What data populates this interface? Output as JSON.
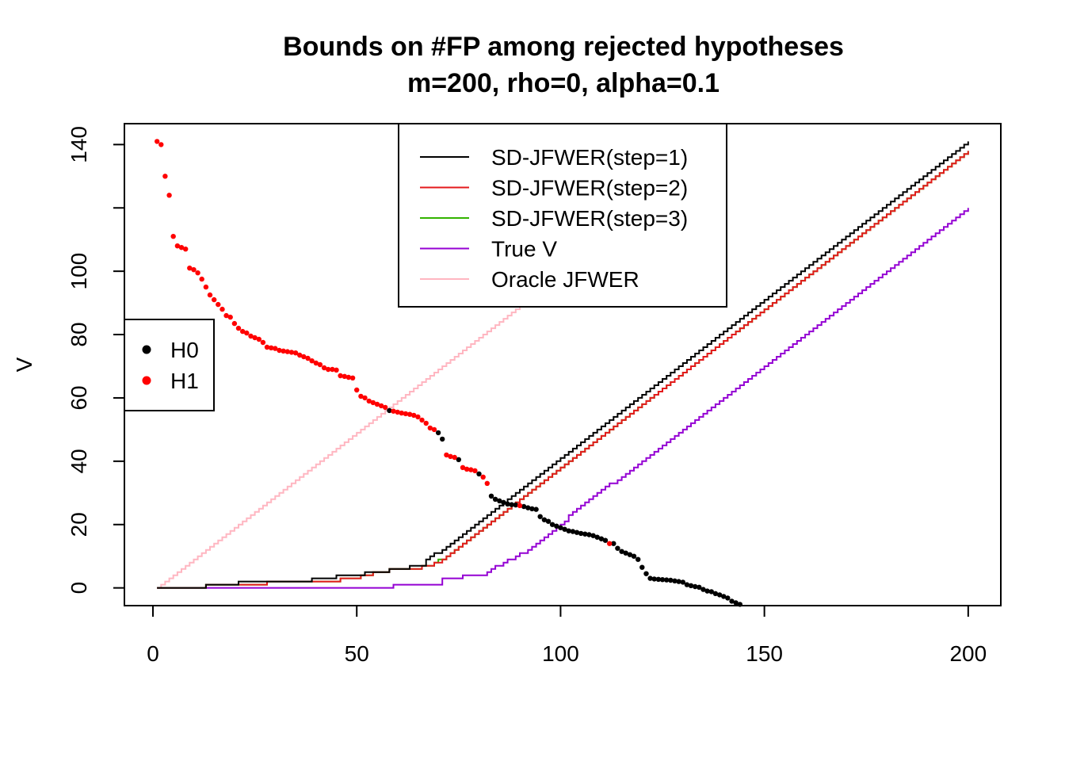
{
  "chart_data": {
    "type": "line",
    "title": "Bounds on #FP among rejected hypotheses",
    "subtitle": "m=200, rho=0, alpha=0.1",
    "xlabel": "",
    "ylabel": "V",
    "xlim": [
      -7,
      208
    ],
    "ylim": [
      -5.6,
      146.6
    ],
    "x_ticks": [
      "0",
      "50",
      "100",
      "150",
      "200"
    ],
    "y_ticks": [
      "0",
      "20",
      "40",
      "60",
      "80",
      "100",
      "140"
    ],
    "legend_lines_position": "top-center",
    "legend_points_position": "left",
    "series": [
      {
        "name": "SD-JFWER(step=1)",
        "color": "#000000",
        "style": "step",
        "points": [
          [
            1,
            0
          ],
          [
            12,
            0
          ],
          [
            13,
            1
          ],
          [
            20,
            1
          ],
          [
            21,
            2
          ],
          [
            27,
            2
          ],
          [
            28,
            2
          ],
          [
            38,
            2
          ],
          [
            39,
            3
          ],
          [
            44,
            3
          ],
          [
            45,
            4
          ],
          [
            51,
            4
          ],
          [
            52,
            5
          ],
          [
            57,
            5
          ],
          [
            58,
            6
          ],
          [
            62,
            6
          ],
          [
            63,
            7
          ],
          [
            66,
            7
          ],
          [
            67,
            9
          ],
          [
            68,
            10
          ],
          [
            70,
            11
          ],
          [
            200,
            141
          ]
        ]
      },
      {
        "name": "SD-JFWER(step=2)",
        "color": "#e41a1c",
        "style": "step",
        "points": [
          [
            1,
            0
          ],
          [
            12,
            0
          ],
          [
            13,
            1
          ],
          [
            27,
            1
          ],
          [
            28,
            2
          ],
          [
            45,
            2
          ],
          [
            46,
            3
          ],
          [
            50,
            3
          ],
          [
            51,
            4
          ],
          [
            53,
            4
          ],
          [
            54,
            5
          ],
          [
            57,
            5
          ],
          [
            58,
            6
          ],
          [
            65,
            6
          ],
          [
            66,
            7
          ],
          [
            68,
            7
          ],
          [
            69,
            8
          ],
          [
            71,
            9
          ],
          [
            200,
            138
          ]
        ]
      },
      {
        "name": "SD-JFWER(step=3)",
        "color": "#33b300",
        "style": "step",
        "points": [
          [
            1,
            0
          ],
          [
            12,
            0
          ],
          [
            13,
            1
          ],
          [
            27,
            1
          ],
          [
            28,
            2
          ],
          [
            45,
            2
          ],
          [
            46,
            3
          ],
          [
            50,
            3
          ],
          [
            51,
            4
          ],
          [
            53,
            4
          ],
          [
            54,
            5
          ],
          [
            57,
            5
          ],
          [
            58,
            6
          ],
          [
            65,
            6
          ],
          [
            66,
            7
          ],
          [
            68,
            7
          ],
          [
            69,
            8
          ],
          [
            71,
            9
          ],
          [
            200,
            138
          ]
        ]
      },
      {
        "name": "True V",
        "color": "#9400d3",
        "style": "step",
        "points": [
          [
            1,
            0
          ],
          [
            58,
            0
          ],
          [
            59,
            1
          ],
          [
            70,
            1
          ],
          [
            71,
            3
          ],
          [
            75,
            3
          ],
          [
            76,
            4
          ],
          [
            81,
            4
          ],
          [
            82,
            5
          ],
          [
            86,
            8
          ],
          [
            89,
            10
          ],
          [
            91,
            11
          ],
          [
            93,
            13
          ],
          [
            111,
            32
          ],
          [
            113,
            33
          ],
          [
            200,
            120
          ]
        ]
      },
      {
        "name": "Oracle JFWER",
        "color": "#ffb6c1",
        "style": "step",
        "points": [
          [
            1,
            0
          ],
          [
            91,
            90
          ]
        ]
      }
    ],
    "scatter": [
      {
        "name": "H0",
        "color": "#000000",
        "points": [
          [
            58,
            56
          ],
          [
            70,
            49
          ],
          [
            71,
            47
          ],
          [
            75,
            40.5
          ],
          [
            80,
            36
          ],
          [
            83,
            29
          ],
          [
            84,
            28
          ],
          [
            85,
            27.5
          ],
          [
            86,
            27
          ],
          [
            87,
            26.5
          ],
          [
            88,
            26.3
          ],
          [
            89,
            26.2
          ],
          [
            91,
            25.7
          ],
          [
            92,
            25.3
          ],
          [
            93,
            25
          ],
          [
            94,
            24.8
          ],
          [
            95,
            22.5
          ],
          [
            96,
            21.5
          ],
          [
            97,
            21
          ],
          [
            98,
            20
          ],
          [
            99,
            19.5
          ],
          [
            100,
            19
          ],
          [
            101,
            18.5
          ],
          [
            102,
            18
          ],
          [
            103,
            17.8
          ],
          [
            104,
            17.5
          ],
          [
            105,
            17.2
          ],
          [
            106,
            17
          ],
          [
            107,
            16.8
          ],
          [
            108,
            16.5
          ],
          [
            109,
            16
          ],
          [
            110,
            15.5
          ],
          [
            111,
            15
          ],
          [
            113,
            14
          ],
          [
            114,
            12.5
          ],
          [
            115,
            11.5
          ],
          [
            116,
            11
          ],
          [
            117,
            10.5
          ],
          [
            118,
            10
          ],
          [
            119,
            9
          ],
          [
            120,
            6.5
          ],
          [
            121,
            4.5
          ],
          [
            122,
            3
          ],
          [
            123,
            2.8
          ],
          [
            124,
            2.7
          ],
          [
            125,
            2.6
          ],
          [
            126,
            2.5
          ],
          [
            127,
            2.4
          ],
          [
            128,
            2.2
          ],
          [
            129,
            2
          ],
          [
            130,
            1.8
          ],
          [
            131,
            1
          ],
          [
            132,
            0.7
          ],
          [
            133,
            0.4
          ],
          [
            134,
            0.2
          ],
          [
            135,
            -0.5
          ],
          [
            136,
            -1
          ],
          [
            137,
            -1.2
          ],
          [
            138,
            -1.8
          ],
          [
            139,
            -2.2
          ],
          [
            140,
            -2.7
          ],
          [
            141,
            -3.2
          ],
          [
            142,
            -4.2
          ],
          [
            143,
            -4.7
          ],
          [
            144,
            -5.2
          ]
        ]
      },
      {
        "name": "H1",
        "color": "#ff0000",
        "points": [
          [
            1,
            141
          ],
          [
            2,
            140
          ],
          [
            3,
            130
          ],
          [
            4,
            124
          ],
          [
            5,
            111
          ],
          [
            6,
            108
          ],
          [
            7,
            107.5
          ],
          [
            8,
            107
          ],
          [
            9,
            101
          ],
          [
            10,
            100.5
          ],
          [
            11,
            99.5
          ],
          [
            12,
            97.5
          ],
          [
            13,
            95
          ],
          [
            14,
            92.5
          ],
          [
            15,
            91
          ],
          [
            16,
            89.5
          ],
          [
            17,
            88
          ],
          [
            18,
            86
          ],
          [
            19,
            85.5
          ],
          [
            20,
            83.5
          ],
          [
            21,
            82
          ],
          [
            22,
            81
          ],
          [
            23,
            80.5
          ],
          [
            24,
            79.5
          ],
          [
            25,
            79
          ],
          [
            26,
            78.5
          ],
          [
            27,
            77.5
          ],
          [
            28,
            76
          ],
          [
            29,
            75.8
          ],
          [
            30,
            75.6
          ],
          [
            31,
            75
          ],
          [
            32,
            74.8
          ],
          [
            33,
            74.6
          ],
          [
            34,
            74.4
          ],
          [
            35,
            74.2
          ],
          [
            36,
            73.5
          ],
          [
            37,
            73
          ],
          [
            38,
            72.5
          ],
          [
            39,
            71.7
          ],
          [
            40,
            71
          ],
          [
            41,
            70.5
          ],
          [
            42,
            69.5
          ],
          [
            43,
            69
          ],
          [
            44,
            69
          ],
          [
            45,
            68.8
          ],
          [
            46,
            67
          ],
          [
            47,
            66.8
          ],
          [
            48,
            66.5
          ],
          [
            49,
            66.3
          ],
          [
            50,
            62.5
          ],
          [
            51,
            60.5
          ],
          [
            52,
            60
          ],
          [
            53,
            59
          ],
          [
            54,
            58.5
          ],
          [
            55,
            58
          ],
          [
            56,
            57.5
          ],
          [
            57,
            57
          ],
          [
            59,
            55.8
          ],
          [
            60,
            55.5
          ],
          [
            61,
            55.2
          ],
          [
            62,
            55
          ],
          [
            63,
            54.8
          ],
          [
            64,
            54.5
          ],
          [
            65,
            54
          ],
          [
            66,
            53
          ],
          [
            67,
            52
          ],
          [
            68,
            50.5
          ],
          [
            69,
            50
          ],
          [
            72,
            42
          ],
          [
            73,
            41.5
          ],
          [
            74,
            41.2
          ],
          [
            76,
            38
          ],
          [
            77,
            37.5
          ],
          [
            78,
            37.3
          ],
          [
            79,
            37
          ],
          [
            81,
            35
          ],
          [
            82,
            33
          ],
          [
            90,
            26
          ],
          [
            112,
            14
          ]
        ]
      }
    ]
  }
}
